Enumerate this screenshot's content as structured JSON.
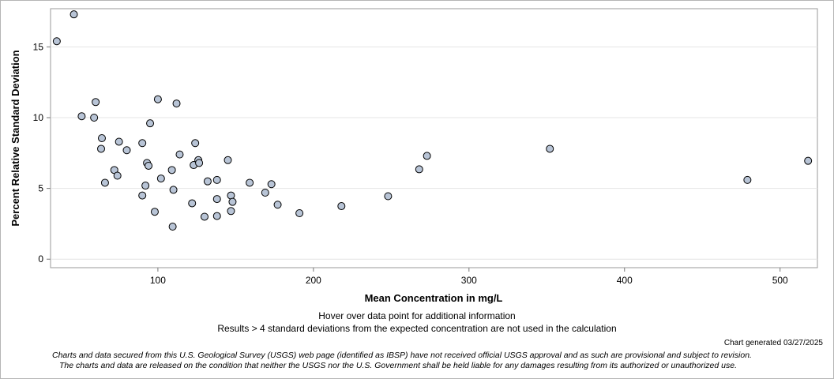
{
  "chart_data": {
    "type": "scatter",
    "title": "",
    "xlabel": "Mean Concentration in mg/L",
    "ylabel": "Percent Relative Standard Deviation",
    "xlim": [
      31,
      524
    ],
    "ylim": [
      -0.6,
      17.7
    ],
    "xticks": [
      100,
      200,
      300,
      400,
      500
    ],
    "yticks": [
      0,
      5,
      10,
      15
    ],
    "grid": "horizontal",
    "marker_color": "#b8c4d6",
    "marker_edge": "#000000",
    "points": [
      [
        35,
        15.4
      ],
      [
        46,
        17.3
      ],
      [
        51,
        10.1
      ],
      [
        59,
        10.0
      ],
      [
        60,
        11.1
      ],
      [
        64,
        8.55
      ],
      [
        63.5,
        7.8
      ],
      [
        66,
        5.4
      ],
      [
        72,
        6.3
      ],
      [
        74,
        5.9
      ],
      [
        75,
        8.3
      ],
      [
        80,
        7.7
      ],
      [
        90,
        8.2
      ],
      [
        90,
        4.5
      ],
      [
        92,
        5.2
      ],
      [
        93,
        6.8
      ],
      [
        94,
        6.6
      ],
      [
        95,
        9.6
      ],
      [
        98,
        3.35
      ],
      [
        100,
        11.3
      ],
      [
        102,
        5.7
      ],
      [
        109,
        6.3
      ],
      [
        110,
        4.9
      ],
      [
        109.5,
        2.3
      ],
      [
        112,
        11.0
      ],
      [
        114,
        7.4
      ],
      [
        122,
        3.95
      ],
      [
        123,
        6.65
      ],
      [
        124,
        8.2
      ],
      [
        126,
        7.0
      ],
      [
        126.5,
        6.8
      ],
      [
        130,
        3.0
      ],
      [
        132,
        5.5
      ],
      [
        138,
        5.6
      ],
      [
        138,
        4.25
      ],
      [
        138,
        3.05
      ],
      [
        145,
        7.0
      ],
      [
        147,
        3.4
      ],
      [
        147,
        4.5
      ],
      [
        148,
        4.05
      ],
      [
        159,
        5.4
      ],
      [
        169,
        4.7
      ],
      [
        173,
        5.3
      ],
      [
        177,
        3.85
      ],
      [
        191,
        3.25
      ],
      [
        218,
        3.75
      ],
      [
        248,
        4.45
      ],
      [
        268,
        6.35
      ],
      [
        273,
        7.3
      ],
      [
        352,
        7.8
      ],
      [
        479,
        5.6
      ],
      [
        518,
        6.95
      ]
    ]
  },
  "notes": {
    "hover": "Hover over data point for additional information",
    "results": "Results > 4 standard deviations from the expected concentration are not used in the calculation",
    "generated": "Chart generated 03/27/2025",
    "disclaimer_line1": "Charts and data secured from this U.S. Geological Survey (USGS) web page (identified as IBSP) have not received official USGS approval and as such are provisional and subject to revision.",
    "disclaimer_line2": "The charts and data are released on the condition that neither the USGS nor the U.S. Government shall be held liable for any damages resulting from its authorized or unauthorized use."
  }
}
